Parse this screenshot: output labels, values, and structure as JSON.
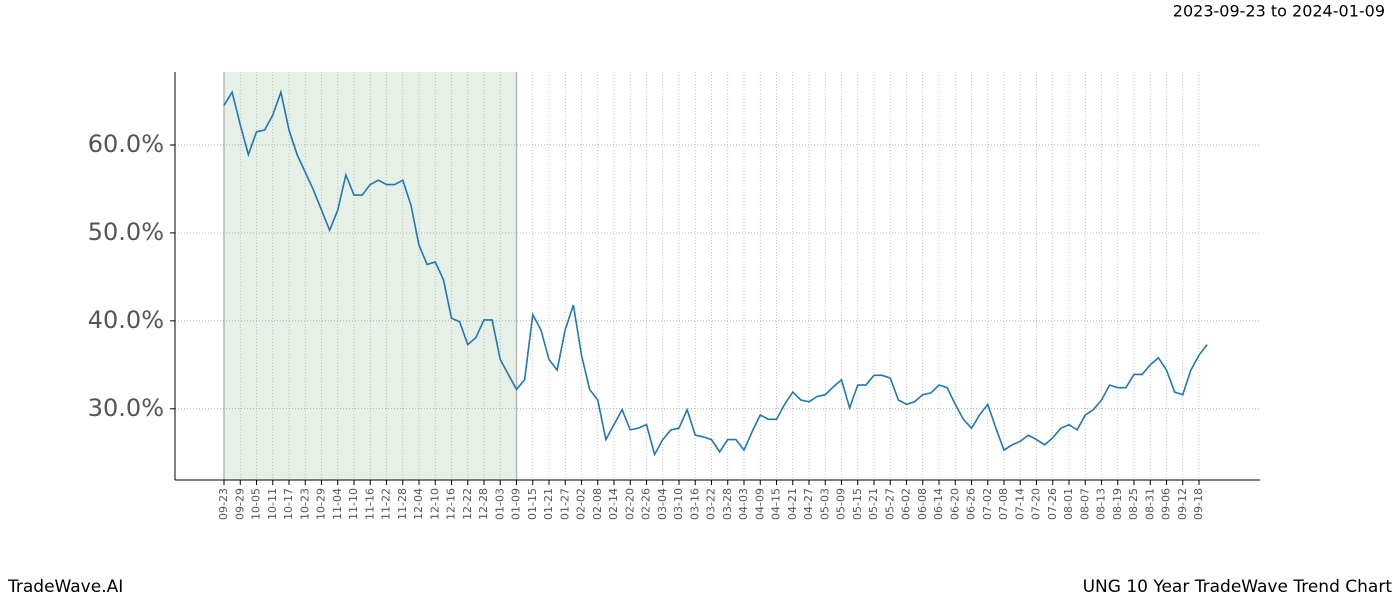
{
  "chart_data": {
    "type": "line",
    "title": "2023-09-23 to 2024-01-09",
    "footer_left": "TradeWave.AI",
    "footer_right": "UNG 10 Year TradeWave Trend Chart",
    "highlight": {
      "start": "09-23",
      "end": "01-09",
      "color": "#e6f0e6"
    },
    "categories": [
      "09-23",
      null,
      "09-29",
      null,
      "10-05",
      null,
      "10-11",
      null,
      "10-17",
      null,
      "10-23",
      null,
      "10-29",
      null,
      "11-04",
      null,
      "11-10",
      null,
      "11-16",
      null,
      "11-22",
      null,
      "11-28",
      null,
      "12-04",
      null,
      "12-10",
      null,
      "12-16",
      null,
      "12-22",
      null,
      "12-28",
      null,
      "01-03",
      null,
      "01-09",
      null,
      "01-15",
      null,
      "01-21",
      null,
      "01-27",
      null,
      "02-02",
      null,
      "02-08",
      null,
      "02-14",
      null,
      "02-20",
      null,
      "02-26",
      null,
      "03-04",
      null,
      "03-10",
      null,
      "03-16",
      null,
      "03-22",
      null,
      "03-28",
      null,
      "04-03",
      null,
      "04-09",
      null,
      "04-15",
      null,
      "04-21",
      null,
      "04-27",
      null,
      "05-03",
      null,
      "05-09",
      null,
      "05-15",
      null,
      "05-21",
      null,
      "05-27",
      null,
      "06-02",
      null,
      "06-08",
      null,
      "06-14",
      null,
      "06-20",
      null,
      "06-26",
      null,
      "07-02",
      null,
      "07-08",
      null,
      "07-14",
      null,
      "07-20",
      null,
      "07-26",
      null,
      "08-01",
      null,
      "08-07",
      null,
      "08-13",
      null,
      "08-19",
      null,
      "08-25",
      null,
      "08-31",
      null,
      "09-06",
      null,
      "09-12",
      null,
      "09-18",
      null
    ],
    "series": [
      {
        "name": "UNG",
        "color": "#1f77b4",
        "values": [
          64.5,
          66.0,
          62.3,
          58.9,
          61.5,
          61.7,
          63.4,
          66.0,
          61.7,
          58.9,
          56.9,
          54.9,
          52.6,
          50.3,
          52.6,
          56.6,
          54.3,
          54.3,
          55.5,
          56.0,
          55.5,
          55.5,
          56.0,
          53.2,
          48.6,
          46.4,
          46.7,
          44.7,
          40.3,
          39.9,
          37.3,
          38.1,
          40.1,
          40.1,
          35.6,
          33.9,
          32.2,
          33.3,
          40.7,
          39.0,
          35.6,
          34.4,
          39.0,
          41.8,
          36.1,
          32.2,
          31.0,
          26.5,
          28.2,
          29.9,
          27.6,
          27.8,
          28.2,
          24.8,
          26.5,
          27.6,
          27.8,
          29.9,
          27.0,
          26.8,
          26.5,
          25.1,
          26.5,
          26.5,
          25.3,
          27.4,
          29.3,
          28.8,
          28.8,
          30.5,
          31.9,
          31.0,
          30.8,
          31.4,
          31.6,
          32.5,
          33.3,
          30.1,
          32.7,
          32.7,
          33.8,
          33.8,
          33.5,
          31.0,
          30.5,
          30.8,
          31.6,
          31.8,
          32.7,
          32.4,
          30.5,
          28.8,
          27.8,
          29.3,
          30.5,
          27.8,
          25.3,
          25.9,
          26.3,
          27.0,
          26.5,
          25.9,
          26.7,
          27.8,
          28.2,
          27.6,
          29.3,
          29.9,
          31.0,
          32.7,
          32.4,
          32.4,
          33.9,
          33.9,
          35.0,
          35.8,
          34.4,
          31.9,
          31.6,
          34.4,
          36.1,
          37.3
        ]
      }
    ],
    "ylim": [
      21.9,
      68.3
    ],
    "yticks": [
      {
        "value": 30,
        "label": "30.0%"
      },
      {
        "value": 40,
        "label": "40.0%"
      },
      {
        "value": 50,
        "label": "50.0%"
      },
      {
        "value": 60,
        "label": "60.0%"
      }
    ],
    "grid": true
  }
}
